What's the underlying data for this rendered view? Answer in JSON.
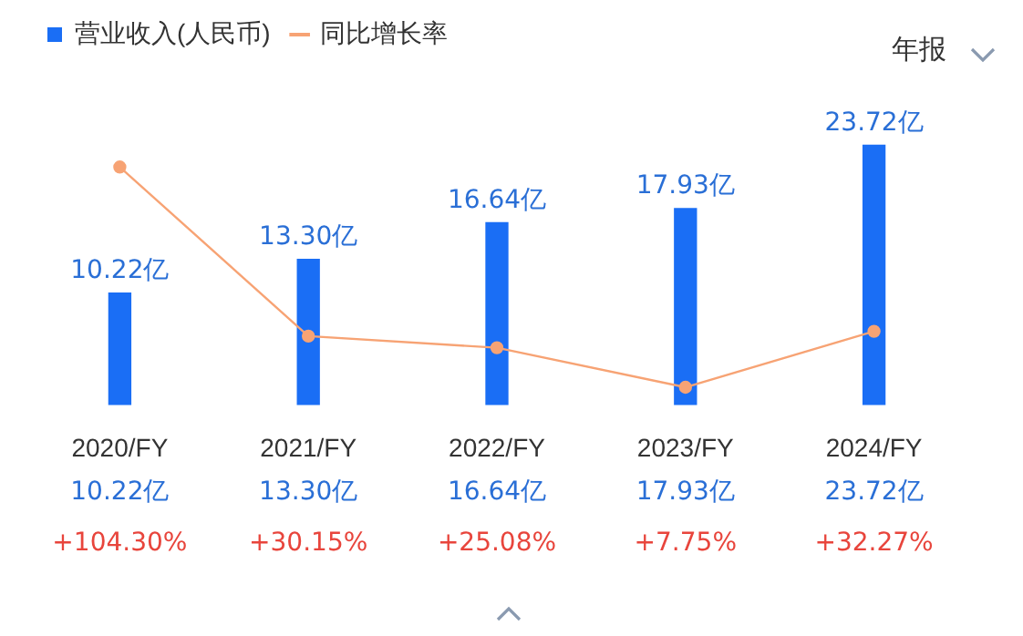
{
  "chart_data": {
    "type": "bar",
    "categories": [
      "2020/FY",
      "2021/FY",
      "2022/FY",
      "2023/FY",
      "2024/FY"
    ],
    "series": [
      {
        "name": "营业收入(人民币)",
        "color": "#1a6ef5",
        "values": [
          10.22,
          13.3,
          16.64,
          17.93,
          23.72
        ],
        "value_labels": [
          "10.22亿",
          "13.30亿",
          "16.64亿",
          "17.93亿",
          "23.72亿"
        ]
      },
      {
        "name": "同比增长率",
        "type": "line",
        "axis": "y2",
        "color": "#f7a374",
        "values": [
          104.3,
          30.15,
          25.08,
          7.75,
          32.27
        ],
        "value_labels": [
          "+104.30%",
          "+30.15%",
          "+25.08%",
          "+7.75%",
          "+32.27%"
        ]
      }
    ],
    "legend": "top left",
    "marker": "circle",
    "grid": false,
    "annotations": [
      "年报"
    ]
  }
}
